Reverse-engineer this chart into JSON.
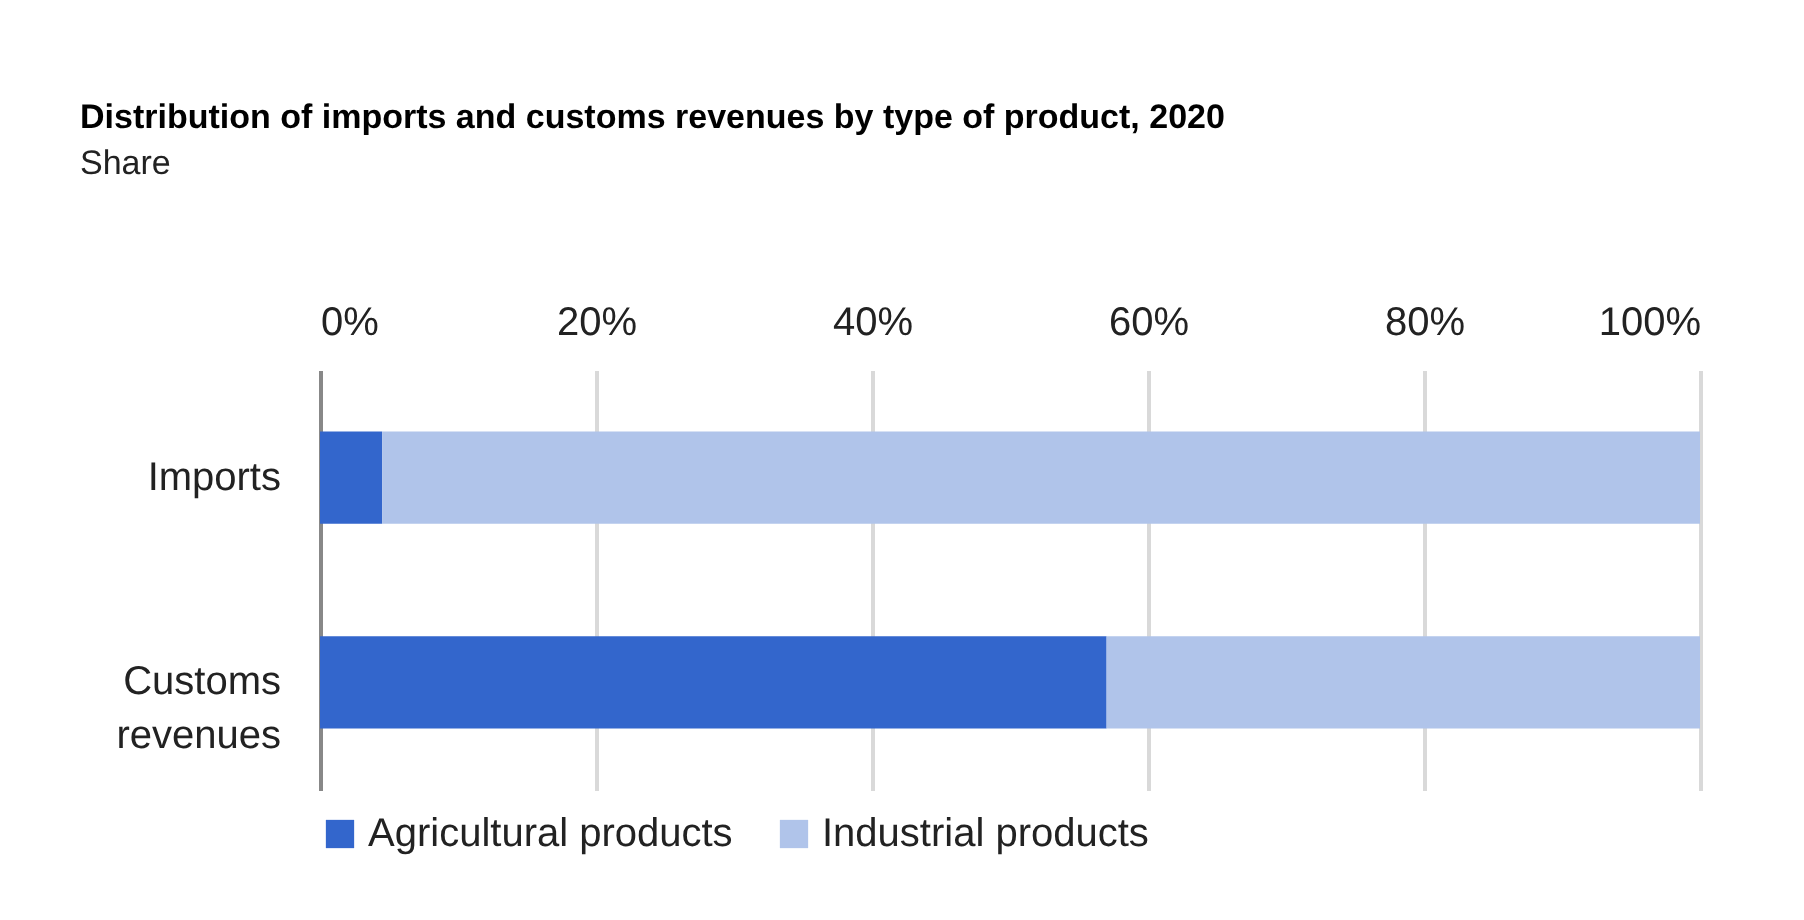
{
  "chart_data": {
    "type": "bar",
    "orientation": "horizontal",
    "stacked": true,
    "title": "Distribution of imports and customs revenues by type of product, 2020",
    "subtitle": "Share",
    "categories": [
      "Imports",
      "Customs revenues"
    ],
    "series": [
      {
        "name": "Agricultural products",
        "color": "#3366cc",
        "values": [
          4.5,
          57
        ]
      },
      {
        "name": "Industrial products",
        "color": "#b0c4ea",
        "values": [
          95.5,
          43
        ]
      }
    ],
    "xlim": [
      0,
      100
    ],
    "xticks": [
      {
        "value": 0,
        "label": "0%"
      },
      {
        "value": 20,
        "label": "20%"
      },
      {
        "value": 40,
        "label": "40%"
      },
      {
        "value": 60,
        "label": "60%"
      },
      {
        "value": 80,
        "label": "80%"
      },
      {
        "value": 100,
        "label": "100%"
      }
    ],
    "grid": "x",
    "legend": "bottom"
  }
}
